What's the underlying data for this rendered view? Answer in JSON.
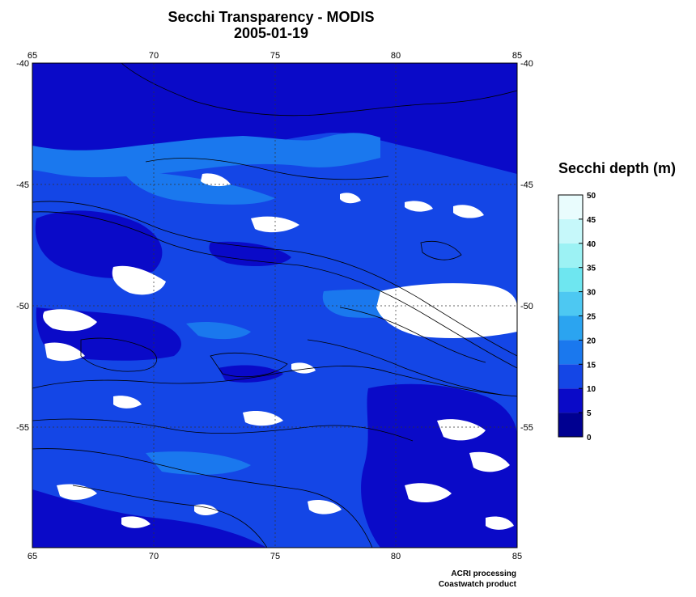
{
  "title": "Secchi Transparency - MODIS",
  "date": "2005-01-19",
  "colorbar": {
    "label": "Secchi depth (m)",
    "ticks": [
      "0",
      "5",
      "10",
      "15",
      "20",
      "25",
      "30",
      "35",
      "40",
      "45",
      "50"
    ],
    "colors": [
      "#000091",
      "#0a0ac8",
      "#1446e6",
      "#1a78ee",
      "#2ba4f0",
      "#4dc8f2",
      "#6ee6f0",
      "#9cf2f4",
      "#c6f8fa",
      "#e9fcfd"
    ]
  },
  "axes": {
    "lon_ticks": [
      "65",
      "70",
      "75",
      "80",
      "85"
    ],
    "lat_ticks": [
      "-40",
      "-45",
      "-50",
      "-55"
    ]
  },
  "credits": [
    "ACRI processing",
    "Coastwatch product"
  ]
}
